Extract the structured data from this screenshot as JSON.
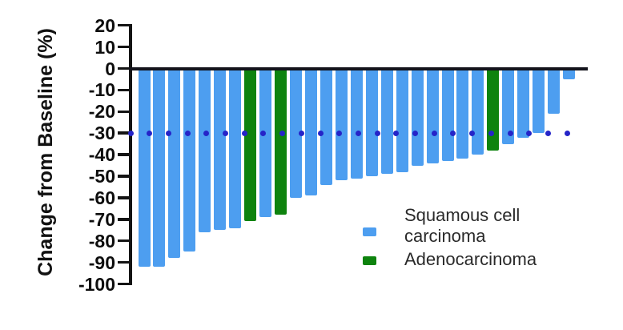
{
  "chart_data": {
    "type": "bar",
    "title": "",
    "ylabel": "Change from Baseline (%)",
    "xlabel": "",
    "ylim": [
      -100,
      20
    ],
    "yticks": [
      20,
      10,
      0,
      -10,
      -20,
      -30,
      -40,
      -50,
      -60,
      -70,
      -80,
      -90,
      -100
    ],
    "grid": false,
    "legend_position": "inside-bottom-right",
    "reference_line": {
      "value": -30,
      "style": "dotted",
      "color": "#2524c8"
    },
    "series": [
      {
        "name": "Squamous cell carcinoma",
        "color": "#4d9ef0"
      },
      {
        "name": "Adenocarcinoma",
        "color": "#0e830e"
      }
    ],
    "values": [
      -92,
      -92,
      -88,
      -85,
      -76,
      -75,
      -74,
      -71,
      -69,
      -68,
      -60,
      -59,
      -54,
      -52,
      -51,
      -50,
      -49,
      -48,
      -45,
      -44,
      -43,
      -42,
      -40,
      -38,
      -35,
      -32,
      -30,
      -21,
      -5
    ],
    "series_index": [
      0,
      0,
      0,
      0,
      0,
      0,
      0,
      1,
      0,
      1,
      0,
      0,
      0,
      0,
      0,
      0,
      0,
      0,
      0,
      0,
      0,
      0,
      0,
      1,
      0,
      0,
      0,
      0,
      0
    ]
  },
  "colors": {
    "axis": "#141414",
    "background": "#ffffff"
  }
}
